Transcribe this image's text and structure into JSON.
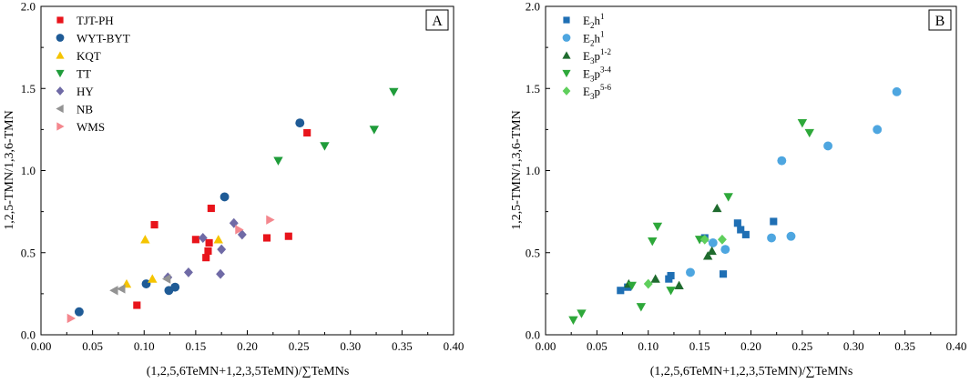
{
  "chart_data": [
    {
      "type": "scatter",
      "panel_label": "A",
      "xlabel": "(1,2,5,6TeMN+1,2,3,5TeMN)/∑TeMNs",
      "ylabel": "1,2,5-TMN/1,3,6-TMN",
      "xlim": [
        0.0,
        0.4
      ],
      "ylim": [
        0.0,
        2.0
      ],
      "xticks": [
        "0.00",
        "0.05",
        "0.10",
        "0.15",
        "0.20",
        "0.25",
        "0.30",
        "0.35",
        "0.40"
      ],
      "yticks": [
        "0.0",
        "0.5",
        "1.0",
        "1.5",
        "2.0"
      ],
      "legend_position": "top-left",
      "series": [
        {
          "name": "TJT-PH",
          "marker": "square",
          "color": "#e8141b",
          "points": [
            [
              0.093,
              0.18
            ],
            [
              0.11,
              0.67
            ],
            [
              0.15,
              0.58
            ],
            [
              0.16,
              0.47
            ],
            [
              0.162,
              0.51
            ],
            [
              0.163,
              0.56
            ],
            [
              0.165,
              0.77
            ],
            [
              0.219,
              0.59
            ],
            [
              0.24,
              0.6
            ],
            [
              0.258,
              1.23
            ]
          ]
        },
        {
          "name": "WYT-BYT",
          "marker": "circle",
          "color": "#1f5b96",
          "points": [
            [
              0.037,
              0.14
            ],
            [
              0.102,
              0.31
            ],
            [
              0.124,
              0.27
            ],
            [
              0.13,
              0.29
            ],
            [
              0.178,
              0.84
            ],
            [
              0.251,
              1.29
            ]
          ]
        },
        {
          "name": "KQT",
          "marker": "triangle-up",
          "color": "#f5c400",
          "points": [
            [
              0.083,
              0.31
            ],
            [
              0.101,
              0.58
            ],
            [
              0.108,
              0.34
            ],
            [
              0.172,
              0.58
            ]
          ]
        },
        {
          "name": "TT",
          "marker": "triangle-down",
          "color": "#1f9c3a",
          "points": [
            [
              0.23,
              1.06
            ],
            [
              0.275,
              1.15
            ],
            [
              0.323,
              1.25
            ],
            [
              0.342,
              1.48
            ]
          ]
        },
        {
          "name": "HY",
          "marker": "diamond",
          "color": "#6f6aa6",
          "points": [
            [
              0.123,
              0.35
            ],
            [
              0.143,
              0.38
            ],
            [
              0.157,
              0.59
            ],
            [
              0.174,
              0.37
            ],
            [
              0.175,
              0.52
            ],
            [
              0.187,
              0.68
            ],
            [
              0.195,
              0.61
            ]
          ]
        },
        {
          "name": "NB",
          "marker": "triangle-left",
          "color": "#939393",
          "points": [
            [
              0.071,
              0.27
            ],
            [
              0.078,
              0.28
            ],
            [
              0.122,
              0.34
            ]
          ]
        },
        {
          "name": "WMS",
          "marker": "triangle-right",
          "color": "#f4878e",
          "points": [
            [
              0.029,
              0.1
            ],
            [
              0.192,
              0.64
            ],
            [
              0.222,
              0.7
            ]
          ]
        }
      ]
    },
    {
      "type": "scatter",
      "panel_label": "B",
      "xlabel": "(1,2,5,6TeMN+1,2,3,5TeMN)/∑TeMNs",
      "ylabel": "1,2,5-TMN/1,3,6-TMN",
      "xlim": [
        0.0,
        0.4
      ],
      "ylim": [
        0.0,
        2.0
      ],
      "xticks": [
        "0.00",
        "0.05",
        "0.10",
        "0.15",
        "0.20",
        "0.25",
        "0.30",
        "0.35",
        "0.40"
      ],
      "yticks": [
        "0.0",
        "0.5",
        "1.0",
        "1.5",
        "2.0"
      ],
      "legend_position": "top-left",
      "series": [
        {
          "name_parts": [
            "E",
            "2",
            "h",
            "1"
          ],
          "marker": "square",
          "color": "#1f6fb4",
          "points": [
            [
              0.073,
              0.27
            ],
            [
              0.08,
              0.29
            ],
            [
              0.12,
              0.34
            ],
            [
              0.122,
              0.36
            ],
            [
              0.155,
              0.59
            ],
            [
              0.173,
              0.37
            ],
            [
              0.187,
              0.68
            ],
            [
              0.19,
              0.64
            ],
            [
              0.195,
              0.61
            ],
            [
              0.222,
              0.69
            ]
          ]
        },
        {
          "name_parts": [
            "E",
            "2",
            "h",
            "1"
          ],
          "marker": "circle",
          "color": "#4ea6e0",
          "points": [
            [
              0.141,
              0.38
            ],
            [
              0.163,
              0.56
            ],
            [
              0.175,
              0.52
            ],
            [
              0.22,
              0.59
            ],
            [
              0.23,
              1.06
            ],
            [
              0.239,
              0.6
            ],
            [
              0.275,
              1.15
            ],
            [
              0.323,
              1.25
            ],
            [
              0.342,
              1.48
            ]
          ]
        },
        {
          "name_parts": [
            "E",
            "3",
            "p",
            "1-2"
          ],
          "marker": "triangle-up",
          "color": "#1f6b2e",
          "points": [
            [
              0.081,
              0.31
            ],
            [
              0.107,
              0.34
            ],
            [
              0.13,
              0.3
            ],
            [
              0.158,
              0.48
            ],
            [
              0.162,
              0.51
            ],
            [
              0.167,
              0.77
            ]
          ]
        },
        {
          "name_parts": [
            "E",
            "3",
            "p",
            "3-4"
          ],
          "marker": "triangle-down",
          "color": "#2ea83a",
          "points": [
            [
              0.027,
              0.09
            ],
            [
              0.035,
              0.13
            ],
            [
              0.084,
              0.3
            ],
            [
              0.093,
              0.17
            ],
            [
              0.104,
              0.57
            ],
            [
              0.109,
              0.66
            ],
            [
              0.122,
              0.27
            ],
            [
              0.15,
              0.58
            ],
            [
              0.178,
              0.84
            ],
            [
              0.25,
              1.29
            ],
            [
              0.257,
              1.23
            ]
          ]
        },
        {
          "name_parts": [
            "E",
            "3",
            "p",
            "5-6"
          ],
          "marker": "diamond",
          "color": "#5fcf5c",
          "points": [
            [
              0.1,
              0.31
            ],
            [
              0.155,
              0.58
            ],
            [
              0.172,
              0.58
            ]
          ]
        }
      ]
    }
  ]
}
